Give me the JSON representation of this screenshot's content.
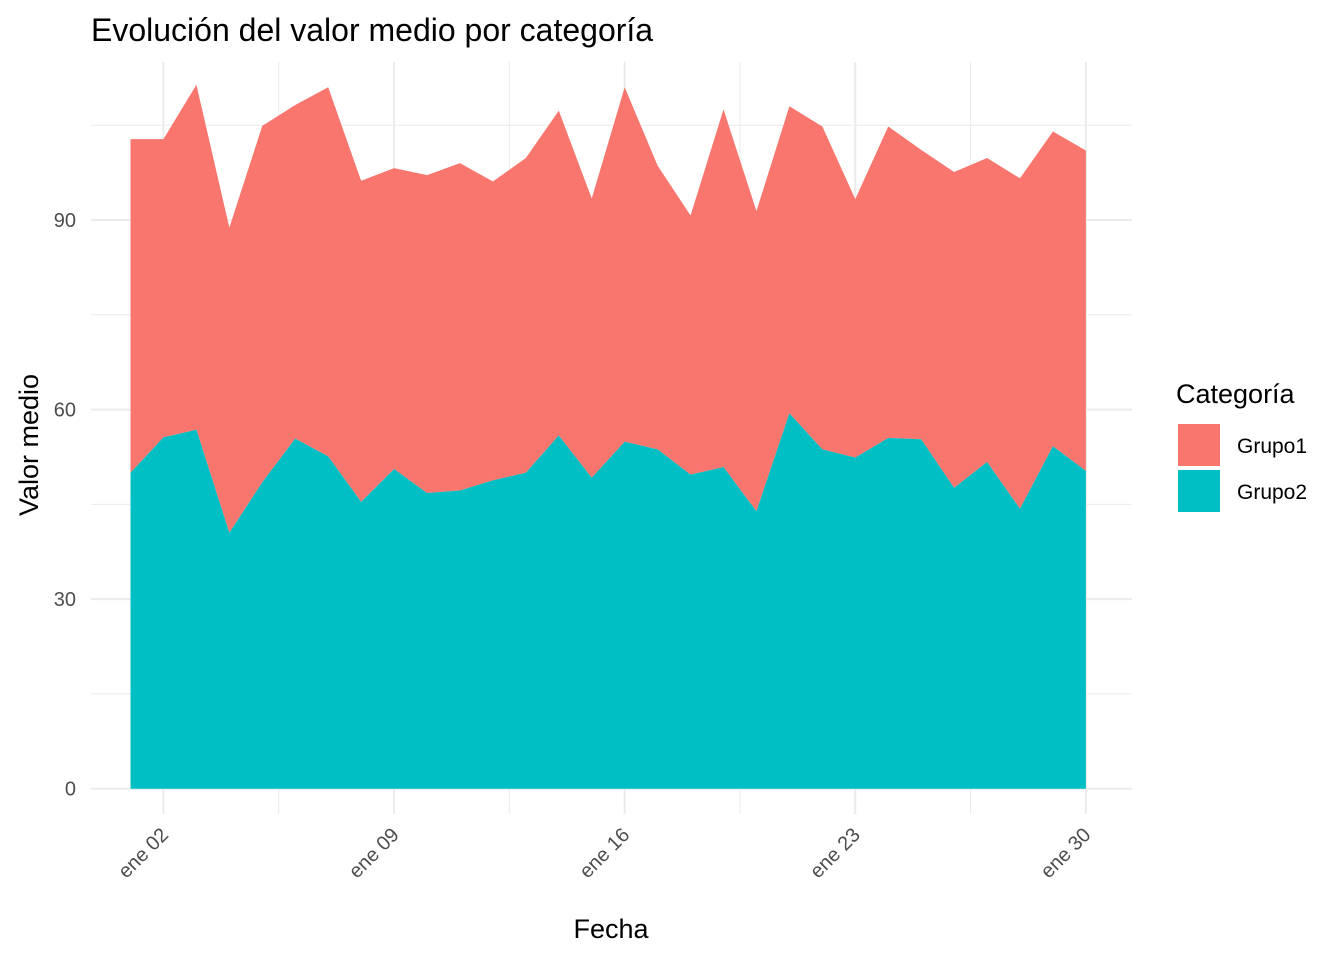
{
  "chart_data": {
    "type": "area",
    "stacked": true,
    "title": "Evolución del valor medio por categoría",
    "xlabel": "Fecha",
    "ylabel": "Valor medio",
    "x_day_of_january": [
      1,
      2,
      3,
      4,
      5,
      6,
      7,
      8,
      9,
      10,
      11,
      12,
      13,
      14,
      15,
      16,
      17,
      18,
      19,
      20,
      21,
      22,
      23,
      24,
      25,
      26,
      27,
      28,
      29,
      30
    ],
    "x_tick_days": [
      2,
      9,
      16,
      23,
      30
    ],
    "x_tick_labels": [
      "ene 02",
      "ene 09",
      "ene 16",
      "ene 23",
      "ene 30"
    ],
    "xlim_days": [
      -0.2,
      31.4
    ],
    "y_ticks": [
      0,
      30,
      60,
      90
    ],
    "ylim": [
      -4,
      115
    ],
    "grid": true,
    "legend": {
      "title": "Categoría",
      "position": "right"
    },
    "colors": {
      "Grupo1": "#F8766D",
      "Grupo2": "#00BFC4",
      "grid": "#ebebeb"
    },
    "series": [
      {
        "name": "Grupo2",
        "values": [
          50.0,
          55.6,
          56.8,
          40.5,
          48.5,
          55.4,
          52.6,
          45.4,
          50.6,
          46.8,
          47.2,
          48.8,
          50.0,
          55.9,
          49.2,
          54.9,
          53.7,
          49.7,
          50.9,
          43.9,
          59.4,
          53.7,
          52.4,
          55.5,
          55.3,
          47.6,
          51.7,
          44.3,
          54.2,
          50.3
        ]
      },
      {
        "name": "Grupo1",
        "values": [
          52.8,
          47.2,
          54.6,
          48.3,
          56.4,
          52.8,
          58.4,
          50.8,
          47.6,
          50.3,
          51.8,
          47.3,
          49.8,
          51.4,
          44.2,
          56.1,
          44.9,
          41.0,
          56.6,
          47.5,
          48.6,
          51.1,
          40.9,
          49.3,
          45.8,
          50.0,
          48.1,
          52.3,
          49.8,
          50.7
        ]
      }
    ]
  }
}
